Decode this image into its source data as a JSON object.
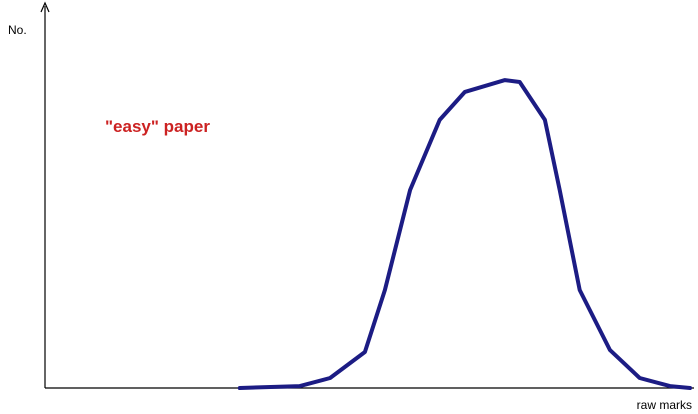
{
  "chart_data": {
    "type": "line",
    "y_label": "No.",
    "x_label": "raw marks",
    "annotation": "\"easy\" paper",
    "xlim": [
      0,
      100
    ],
    "ylim": [
      0,
      100
    ],
    "x": [
      30.2,
      39.5,
      44.2,
      49.6,
      52.7,
      56.6,
      61.2,
      65.1,
      71.3,
      73.6,
      77.5,
      79.8,
      82.9,
      87.6,
      92.2,
      96.9,
      100
    ],
    "series": [
      {
        "color": "#1c1c84",
        "values": [
          0,
          0.5,
          2.6,
          9.4,
          25.6,
          51.7,
          70.0,
          77.3,
          80.4,
          79.9,
          70.0,
          51.7,
          25.6,
          9.9,
          2.6,
          0.5,
          0
        ]
      }
    ],
    "annotation_color": "#cc2222"
  }
}
